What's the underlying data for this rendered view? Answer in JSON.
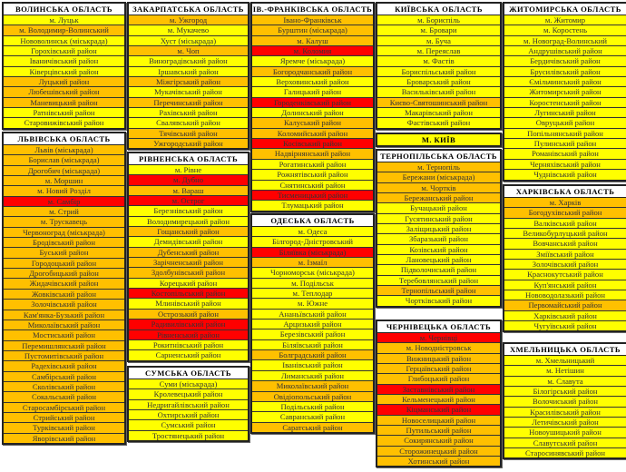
{
  "colors": {
    "yellow": "#ffff00",
    "orange": "#ffc000",
    "red": "#ff0000"
  },
  "regions": [
    {
      "title": "ВОЛИНСЬКА ОБЛАСТЬ",
      "items": [
        {
          "name": "м. Луцьк",
          "color": "yellow"
        },
        {
          "name": "м. Володимир-Волинський",
          "color": "orange"
        },
        {
          "name": "Нововолинськ (міськрада)",
          "color": "yellow"
        },
        {
          "name": "Горохівський район",
          "color": "yellow"
        },
        {
          "name": "Іваничівський район",
          "color": "yellow"
        },
        {
          "name": "Ківерцівський район",
          "color": "yellow"
        },
        {
          "name": "Луцький район",
          "color": "orange"
        },
        {
          "name": "Любешівський район",
          "color": "orange"
        },
        {
          "name": "Маневицький район",
          "color": "orange"
        },
        {
          "name": "Ратнівський район",
          "color": "yellow"
        },
        {
          "name": "Старовижівський район",
          "color": "yellow"
        }
      ]
    },
    {
      "title": "ЛЬВІВСЬКА ОБЛАСТЬ",
      "items": [
        {
          "name": "Львів (міськрада)",
          "color": "orange"
        },
        {
          "name": "Борислав (міськрада)",
          "color": "orange"
        },
        {
          "name": "Дрогобич (міськрада)",
          "color": "orange"
        },
        {
          "name": "м. Моршин",
          "color": "orange"
        },
        {
          "name": "м. Новий Розділ",
          "color": "orange"
        },
        {
          "name": "м. Самбір",
          "color": "red"
        },
        {
          "name": "м. Стрий",
          "color": "orange"
        },
        {
          "name": "м. Трускавець",
          "color": "orange"
        },
        {
          "name": "Червоноград (міськрада)",
          "color": "orange"
        },
        {
          "name": "Бродівський район",
          "color": "orange"
        },
        {
          "name": "Буський район",
          "color": "orange"
        },
        {
          "name": "Городоцький район",
          "color": "orange"
        },
        {
          "name": "Дрогобицький район",
          "color": "orange"
        },
        {
          "name": "Жидачівський район",
          "color": "orange"
        },
        {
          "name": "Жовківський район",
          "color": "orange"
        },
        {
          "name": "Золочівський район",
          "color": "orange"
        },
        {
          "name": "Кам'янка-Бузький район",
          "color": "orange"
        },
        {
          "name": "Миколаївський район",
          "color": "orange"
        },
        {
          "name": "Мостиський район",
          "color": "orange"
        },
        {
          "name": "Перемишлянський район",
          "color": "orange"
        },
        {
          "name": "Пустомитівський район",
          "color": "orange"
        },
        {
          "name": "Радехівський район",
          "color": "orange"
        },
        {
          "name": "Самбірський район",
          "color": "orange"
        },
        {
          "name": "Сколівський район",
          "color": "orange"
        },
        {
          "name": "Сокальський район",
          "color": "orange"
        },
        {
          "name": "Старосамбірський район",
          "color": "orange"
        },
        {
          "name": "Стрийський район",
          "color": "orange"
        },
        {
          "name": "Турківський район",
          "color": "orange"
        },
        {
          "name": "Яворівський район",
          "color": "orange"
        }
      ]
    },
    {
      "title": "ЗАКАРПАТСЬКА ОБЛАСТЬ",
      "items": [
        {
          "name": "м. Ужгород",
          "color": "orange"
        },
        {
          "name": "м. Мукачево",
          "color": "yellow"
        },
        {
          "name": "Хуст (міськрада)",
          "color": "yellow"
        },
        {
          "name": "м. Чоп",
          "color": "orange"
        },
        {
          "name": "Виноградівський район",
          "color": "yellow"
        },
        {
          "name": "Іршавський район",
          "color": "yellow"
        },
        {
          "name": "Міжгірський район",
          "color": "orange"
        },
        {
          "name": "Мукачівський район",
          "color": "yellow"
        },
        {
          "name": "Перечинський район",
          "color": "orange"
        },
        {
          "name": "Рахівський район",
          "color": "yellow"
        },
        {
          "name": "Свалявський район",
          "color": "yellow"
        },
        {
          "name": "Тячівський район",
          "color": "orange"
        },
        {
          "name": "Ужгородський район",
          "color": "orange"
        }
      ]
    },
    {
      "title": "РІВНЕНСЬКА ОБЛАСТЬ",
      "items": [
        {
          "name": "м. Рівне",
          "color": "yellow"
        },
        {
          "name": "м. Дубно",
          "color": "red"
        },
        {
          "name": "м. Вараш",
          "color": "orange"
        },
        {
          "name": "м. Острог",
          "color": "red"
        },
        {
          "name": "Березнівський район",
          "color": "yellow"
        },
        {
          "name": "Володимирецький район",
          "color": "yellow"
        },
        {
          "name": "Гощанський район",
          "color": "orange"
        },
        {
          "name": "Демидівський район",
          "color": "yellow"
        },
        {
          "name": "Дубенський район",
          "color": "orange"
        },
        {
          "name": "Зарічненський район",
          "color": "orange"
        },
        {
          "name": "Здолбунівський район",
          "color": "orange"
        },
        {
          "name": "Корецький район",
          "color": "yellow"
        },
        {
          "name": "Костопільський район",
          "color": "red"
        },
        {
          "name": "Млинівський район",
          "color": "yellow"
        },
        {
          "name": "Острозький район",
          "color": "orange"
        },
        {
          "name": "Радивилівський район",
          "color": "red"
        },
        {
          "name": "Рівненський район",
          "color": "red"
        },
        {
          "name": "Рокитнівський район",
          "color": "yellow"
        },
        {
          "name": "Сарненський район",
          "color": "yellow"
        }
      ]
    },
    {
      "title": "СУМСЬКА ОБЛАСТЬ",
      "items": [
        {
          "name": "Суми (міськрада)",
          "color": "yellow"
        },
        {
          "name": "Кролевецький район",
          "color": "yellow"
        },
        {
          "name": "Недригайлівський район",
          "color": "yellow"
        },
        {
          "name": "Охтирський район",
          "color": "yellow"
        },
        {
          "name": "Сумський район",
          "color": "yellow"
        },
        {
          "name": "Тростянецький район",
          "color": "yellow"
        }
      ]
    },
    {
      "title": "ІВ.-ФРАНКІВСЬКА ОБЛАСТЬ",
      "items": [
        {
          "name": "Івано-Франківськ",
          "color": "orange"
        },
        {
          "name": "Бурштин (міськрада)",
          "color": "orange"
        },
        {
          "name": "м. Калуш",
          "color": "orange"
        },
        {
          "name": "м. Коломия",
          "color": "red"
        },
        {
          "name": "Яремче (міськрада)",
          "color": "yellow"
        },
        {
          "name": "Богородчанський район",
          "color": "orange"
        },
        {
          "name": "Верховинський район",
          "color": "yellow"
        },
        {
          "name": "Галицький район",
          "color": "yellow"
        },
        {
          "name": "Городенківський район",
          "color": "red"
        },
        {
          "name": "Долинський район",
          "color": "yellow"
        },
        {
          "name": "Калуський район",
          "color": "orange"
        },
        {
          "name": "Коломийський район",
          "color": "orange"
        },
        {
          "name": "Косівський район",
          "color": "red"
        },
        {
          "name": "Надвірнянський район",
          "color": "orange"
        },
        {
          "name": "Рогатинський район",
          "color": "yellow"
        },
        {
          "name": "Рожнятівський район",
          "color": "yellow"
        },
        {
          "name": "Снятинський район",
          "color": "yellow"
        },
        {
          "name": "Тисменицький район",
          "color": "red"
        },
        {
          "name": "Тлумацький район",
          "color": "yellow"
        }
      ]
    },
    {
      "title": "ОДЕСЬКА ОБЛАСТЬ",
      "items": [
        {
          "name": "м. Одеса",
          "color": "yellow"
        },
        {
          "name": "Білгород-Дністровський",
          "color": "yellow"
        },
        {
          "name": "Біляївка (міськрада)",
          "color": "red"
        },
        {
          "name": "м. Ізмаїл",
          "color": "orange"
        },
        {
          "name": "Чорноморськ (міськрада)",
          "color": "yellow"
        },
        {
          "name": "м. Подільськ",
          "color": "yellow"
        },
        {
          "name": "м. Теплодар",
          "color": "yellow"
        },
        {
          "name": "м. Южне",
          "color": "yellow"
        },
        {
          "name": "Ананьївський район",
          "color": "yellow"
        },
        {
          "name": "Арцизький район",
          "color": "yellow"
        },
        {
          "name": "Березівський район",
          "color": "yellow"
        },
        {
          "name": "Біляївський район",
          "color": "yellow"
        },
        {
          "name": "Болградський район",
          "color": "orange"
        },
        {
          "name": "Іванівський район",
          "color": "yellow"
        },
        {
          "name": "Лиманський район",
          "color": "yellow"
        },
        {
          "name": "Миколаївський район",
          "color": "orange"
        },
        {
          "name": "Овідіопольський район",
          "color": "orange"
        },
        {
          "name": "Подільський район",
          "color": "yellow"
        },
        {
          "name": "Савранський район",
          "color": "yellow"
        },
        {
          "name": "Саратський район",
          "color": "orange"
        }
      ]
    },
    {
      "title": "КИЇВСЬКА ОБЛАСТЬ",
      "items": [
        {
          "name": "м. Бориспіль",
          "color": "yellow"
        },
        {
          "name": "м. Бровари",
          "color": "yellow"
        },
        {
          "name": "м. Буча",
          "color": "yellow"
        },
        {
          "name": "м. Переяслав",
          "color": "yellow"
        },
        {
          "name": "м. Фастів",
          "color": "yellow"
        },
        {
          "name": "Бориспільський район",
          "color": "yellow"
        },
        {
          "name": "Броварський район",
          "color": "yellow"
        },
        {
          "name": "Васильківський район",
          "color": "yellow"
        },
        {
          "name": "Києво-Святошинський район",
          "color": "orange"
        },
        {
          "name": "Макарівський район",
          "color": "yellow"
        },
        {
          "name": "Фастівський район",
          "color": "yellow"
        }
      ]
    },
    {
      "title": "М. КИЇВ",
      "items": []
    },
    {
      "title": "ТЕРНОПІЛЬСЬКА ОБЛАСТЬ",
      "items": [
        {
          "name": "м. Тернопіль",
          "color": "orange"
        },
        {
          "name": "Бережани (міськрада)",
          "color": "orange"
        },
        {
          "name": "м. Чортків",
          "color": "orange"
        },
        {
          "name": "Бережанський район",
          "color": "orange"
        },
        {
          "name": "Бучацький район",
          "color": "yellow"
        },
        {
          "name": "Гусятинський район",
          "color": "yellow"
        },
        {
          "name": "Заліщицький район",
          "color": "yellow"
        },
        {
          "name": "Збаразький район",
          "color": "yellow"
        },
        {
          "name": "Козівський район",
          "color": "yellow"
        },
        {
          "name": "Лановецький район",
          "color": "yellow"
        },
        {
          "name": "Підволочиський район",
          "color": "yellow"
        },
        {
          "name": "Теребовлянський район",
          "color": "yellow"
        },
        {
          "name": "Тернопільський район",
          "color": "orange"
        },
        {
          "name": "Чортківський район",
          "color": "yellow"
        }
      ]
    },
    {
      "title": "ЧЕРНІВЕЦЬКА ОБЛАСТЬ",
      "items": [
        {
          "name": "м. Чернівці",
          "color": "red"
        },
        {
          "name": "м. Новодністровськ",
          "color": "orange"
        },
        {
          "name": "Вижницький район",
          "color": "orange"
        },
        {
          "name": "Герцаївський район",
          "color": "orange"
        },
        {
          "name": "Глибоцький район",
          "color": "orange"
        },
        {
          "name": "Заставнівський район",
          "color": "red"
        },
        {
          "name": "Кельменецький район",
          "color": "orange"
        },
        {
          "name": "Кіцманський район",
          "color": "red"
        },
        {
          "name": "Новоселицький район",
          "color": "orange"
        },
        {
          "name": "Путильський район",
          "color": "orange"
        },
        {
          "name": "Сокирянський район",
          "color": "orange"
        },
        {
          "name": "Сторожинецький район",
          "color": "orange"
        },
        {
          "name": "Хотинський район",
          "color": "orange"
        }
      ]
    },
    {
      "title": "ЖИТОМИРСЬКА ОБЛАСТЬ",
      "items": [
        {
          "name": "м. Житомир",
          "color": "yellow"
        },
        {
          "name": "м. Коростень",
          "color": "yellow"
        },
        {
          "name": "м. Новоград-Волинський",
          "color": "yellow"
        },
        {
          "name": "Андрушівський район",
          "color": "yellow"
        },
        {
          "name": "Бердичівський район",
          "color": "yellow"
        },
        {
          "name": "Брусилівський район",
          "color": "yellow"
        },
        {
          "name": "Ємільчинський район",
          "color": "yellow"
        },
        {
          "name": "Житомирський район",
          "color": "yellow"
        },
        {
          "name": "Коростенський район",
          "color": "yellow"
        },
        {
          "name": "Лугинський район",
          "color": "yellow"
        },
        {
          "name": "Овруцький район",
          "color": "yellow"
        },
        {
          "name": "Попільнянський район",
          "color": "yellow"
        },
        {
          "name": "Пулинський район",
          "color": "yellow"
        },
        {
          "name": "Романівський район",
          "color": "yellow"
        },
        {
          "name": "Черняхівський район",
          "color": "yellow"
        },
        {
          "name": "Чуднівський район",
          "color": "yellow"
        }
      ]
    },
    {
      "title": "ХАРКІВСЬКА ОБЛАСТЬ",
      "items": [
        {
          "name": "м. Харків",
          "color": "orange"
        },
        {
          "name": "Богодухівський район",
          "color": "orange"
        },
        {
          "name": "Валківський район",
          "color": "yellow"
        },
        {
          "name": "Великобурлуцький район",
          "color": "yellow"
        },
        {
          "name": "Вовчанський район",
          "color": "yellow"
        },
        {
          "name": "Зміївський район",
          "color": "yellow"
        },
        {
          "name": "Золочівський район",
          "color": "yellow"
        },
        {
          "name": "Краснокутський район",
          "color": "yellow"
        },
        {
          "name": "Куп'янський район",
          "color": "yellow"
        },
        {
          "name": "Нововодолазький район",
          "color": "yellow"
        },
        {
          "name": "Первомайський район",
          "color": "orange"
        },
        {
          "name": "Харківський район",
          "color": "yellow"
        },
        {
          "name": "Чугуївський район",
          "color": "yellow"
        }
      ]
    },
    {
      "title": "ХМЕЛЬНИЦЬКА ОБЛАСТЬ",
      "items": [
        {
          "name": "м. Хмельницький",
          "color": "yellow"
        },
        {
          "name": "м. Нетішин",
          "color": "yellow"
        },
        {
          "name": "м. Славута",
          "color": "yellow"
        },
        {
          "name": "Білогірський район",
          "color": "yellow"
        },
        {
          "name": "Волочиський район",
          "color": "yellow"
        },
        {
          "name": "Красилівський район",
          "color": "yellow"
        },
        {
          "name": "Летичівський район",
          "color": "yellow"
        },
        {
          "name": "Новоушицький район",
          "color": "yellow"
        },
        {
          "name": "Славутський район",
          "color": "yellow"
        },
        {
          "name": "Старосинявський район",
          "color": "yellow"
        }
      ]
    }
  ]
}
